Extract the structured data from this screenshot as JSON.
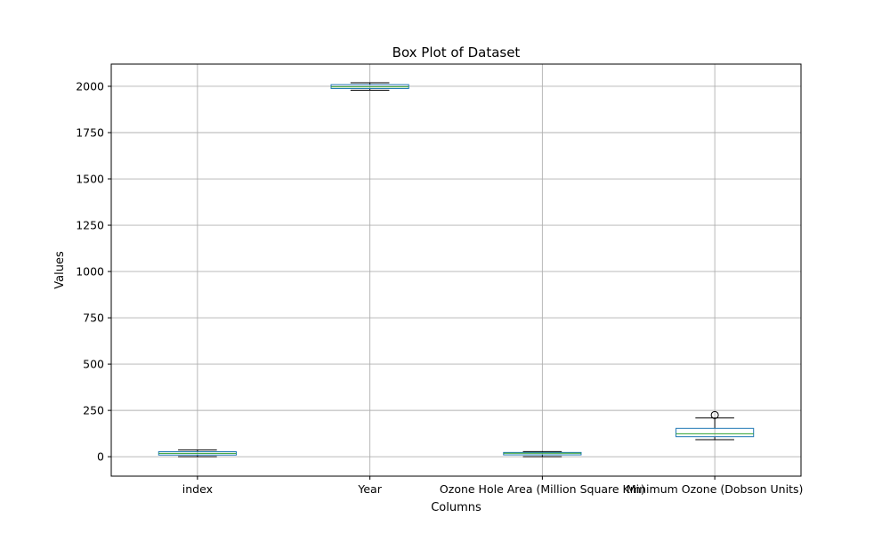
{
  "chart_data": {
    "type": "box",
    "title": "Box Plot of Dataset",
    "xlabel": "Columns",
    "ylabel": "Values",
    "ylim": [
      -105,
      2120
    ],
    "yticks": [
      0,
      250,
      500,
      750,
      1000,
      1250,
      1500,
      1750,
      2000
    ],
    "grid": true,
    "colors": {
      "box": "#1f77b4",
      "median": "#2ca02c",
      "whisker": "#000000",
      "grid": "#b0b0b0"
    },
    "categories": [
      "index",
      "Year",
      "Ozone Hole Area (Million Square Km)",
      "Minimum Ozone (Dobson Units)"
    ],
    "boxes": [
      {
        "name": "index",
        "whisker_low": 0,
        "q1": 9,
        "median": 18,
        "q3": 27,
        "whisker_high": 36,
        "outliers": []
      },
      {
        "name": "Year",
        "whisker_low": 1979,
        "q1": 1988,
        "median": 1997,
        "q3": 2009,
        "whisker_high": 2019,
        "outliers": []
      },
      {
        "name": "Ozone Hole Area (Million Square Km)",
        "whisker_low": 0,
        "q1": 10,
        "median": 19,
        "q3": 23,
        "whisker_high": 28,
        "outliers": []
      },
      {
        "name": "Minimum Ozone (Dobson Units)",
        "whisker_low": 92,
        "q1": 108,
        "median": 124,
        "q3": 153,
        "whisker_high": 209,
        "outliers": [
          225
        ]
      }
    ]
  }
}
